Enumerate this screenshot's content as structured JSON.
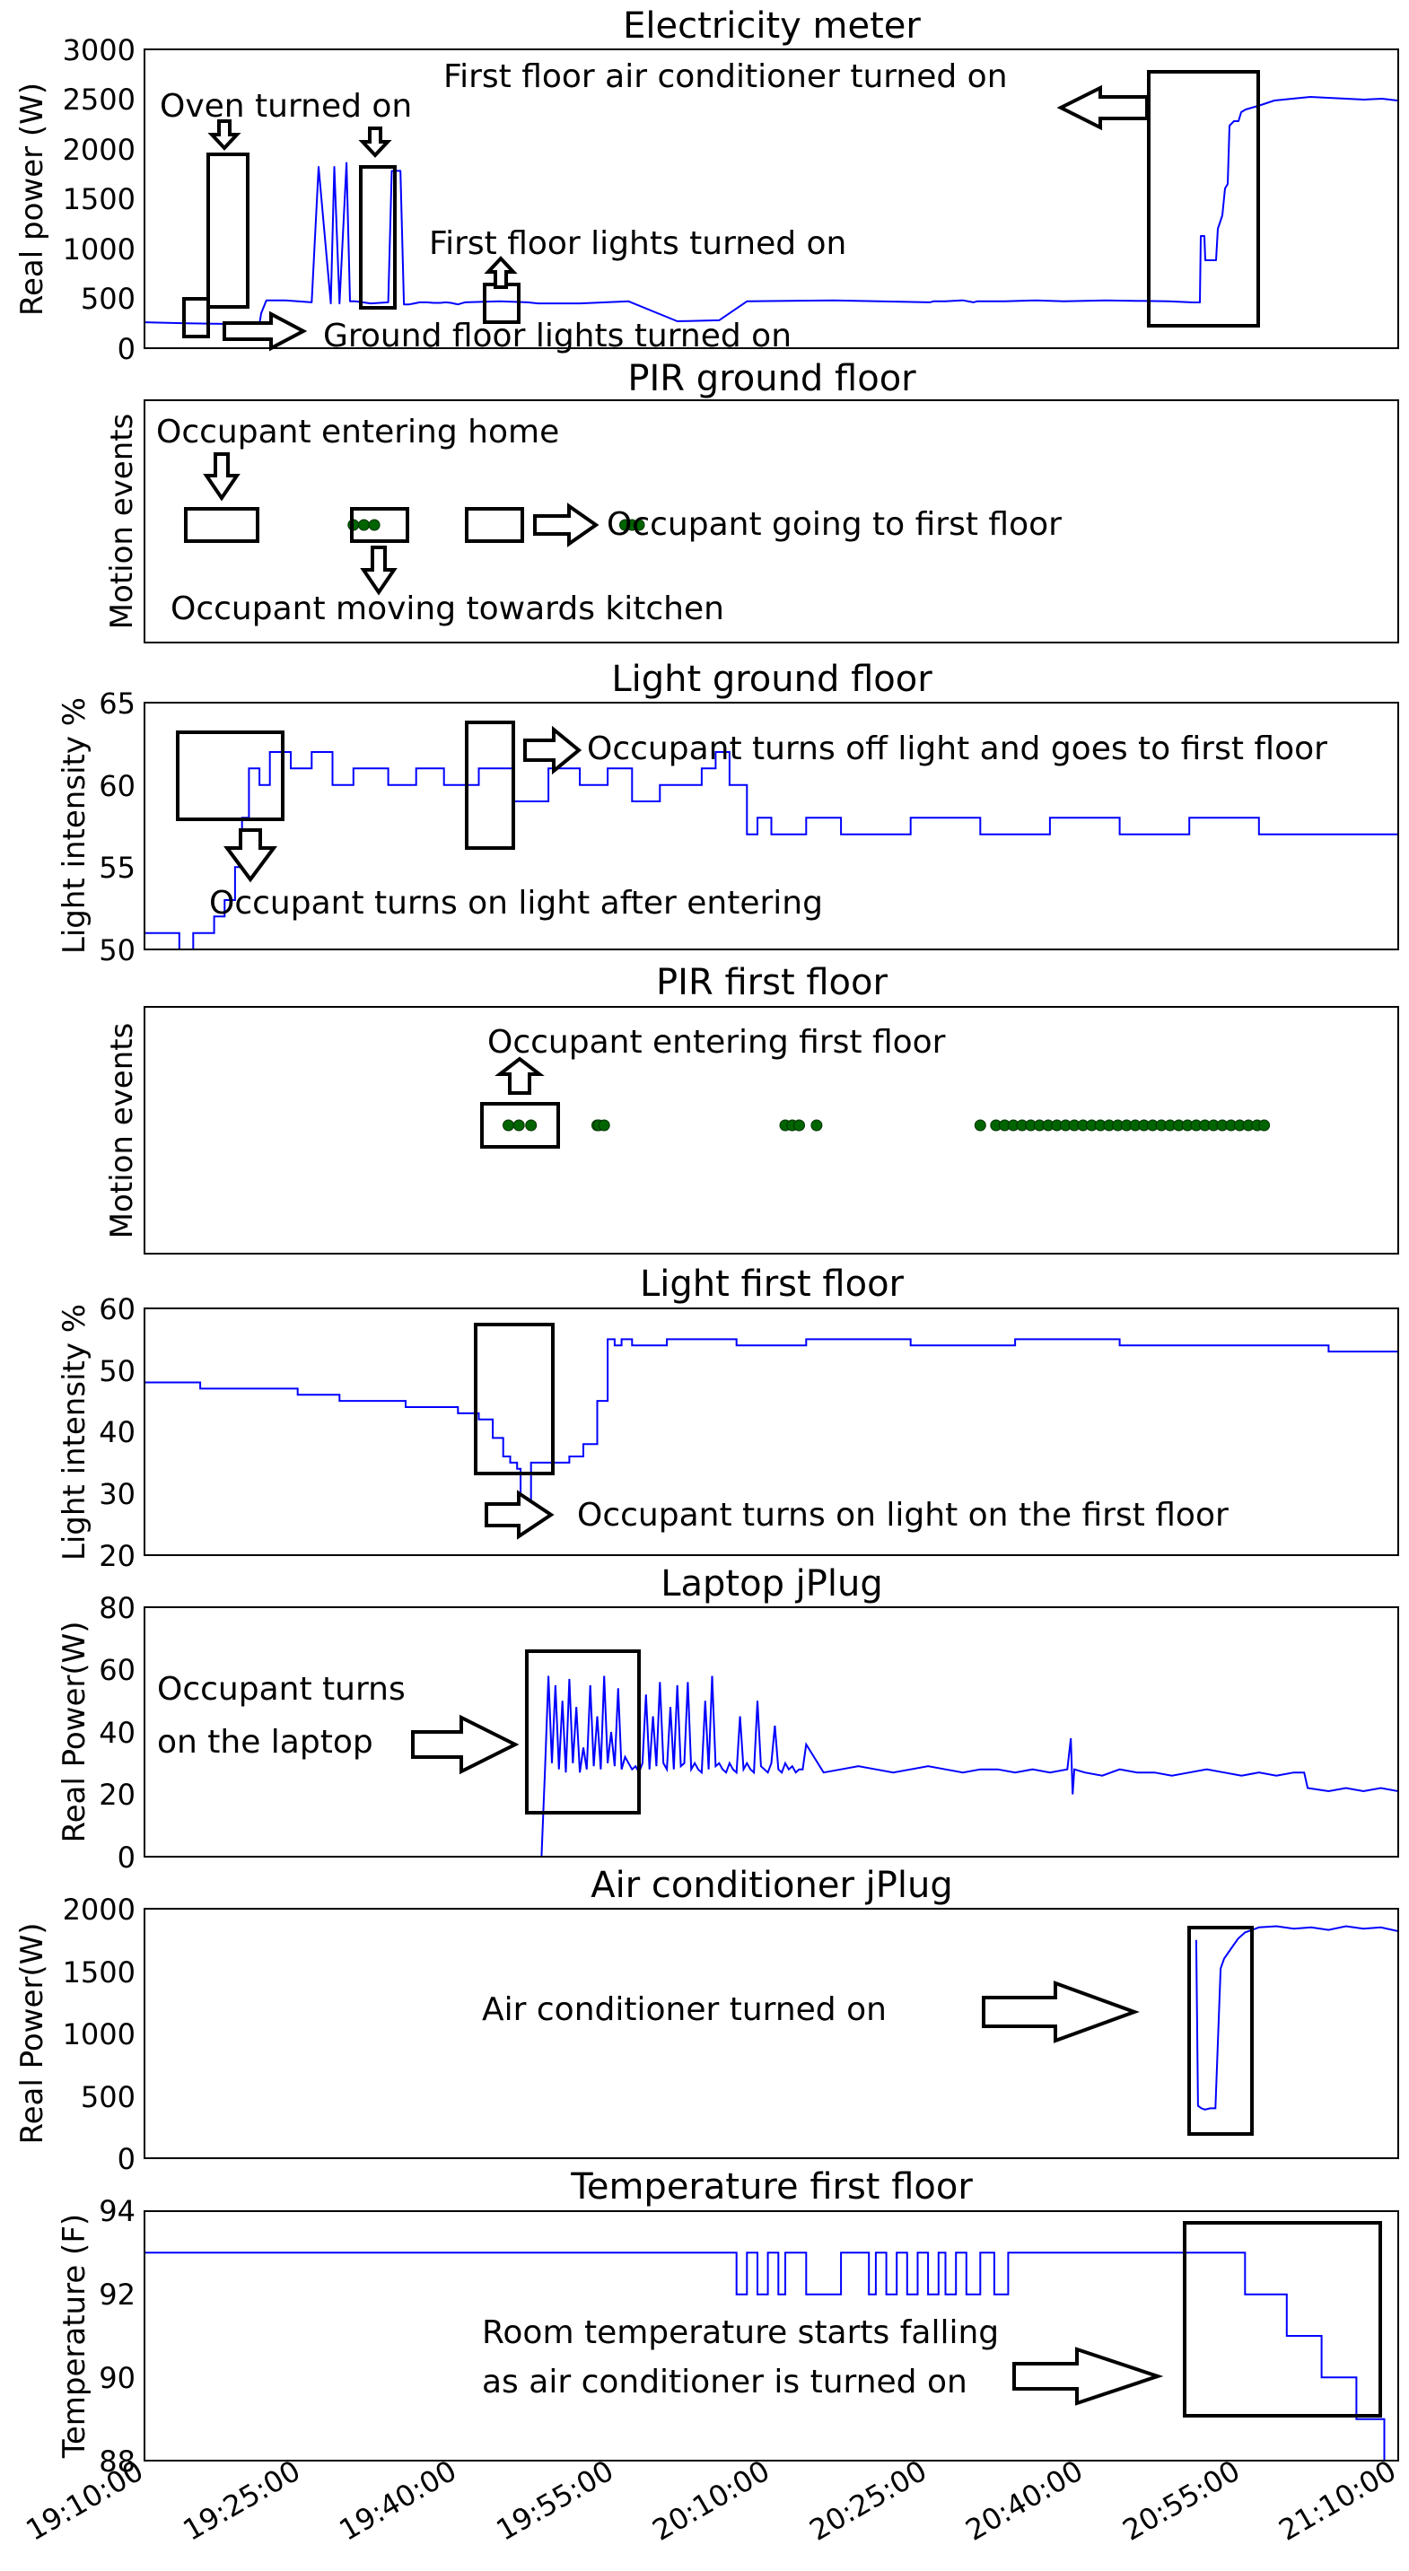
{
  "chart_data": [
    {
      "id": "electricity",
      "type": "line",
      "title": "Electricity meter",
      "ylabel": "Real power (W)",
      "ylim": [
        0,
        3000
      ],
      "yticks": [
        "0",
        "500",
        "1000",
        "1500",
        "2000",
        "2500",
        "3000"
      ],
      "color": "#0000ff",
      "series": [
        {
          "x": [
            0,
            120,
            330,
            335,
            350,
            405,
            480,
            500,
            535,
            545,
            560,
            580,
            590,
            605,
            650,
            700,
            710,
            735,
            745,
            760,
            775,
            790,
            810,
            830,
            850,
            865,
            880,
            900,
            920,
            1020,
            1100,
            1130,
            1250,
            1390,
            1530,
            1650,
            1730,
            1980,
            2255,
            2265,
            2275,
            2300,
            2345,
            2350,
            2380,
            2390,
            2420,
            2470,
            2560,
            2640,
            2760,
            2940,
            3110,
            3300,
            3500,
            3590,
            3600
          ],
          "y": [
            260,
            250,
            240,
            350,
            480,
            480,
            460,
            1820,
            450,
            1820,
            450,
            1860,
            470,
            470,
            450,
            460,
            1780,
            1780,
            440,
            440,
            450,
            460,
            460,
            455,
            455,
            460,
            455,
            440,
            460,
            470,
            460,
            450,
            450,
            470,
            270,
            280,
            470,
            480,
            460,
            470,
            470,
            470,
            480,
            480,
            460,
            470,
            470,
            470,
            480,
            470,
            480,
            470,
            490,
            500,
            480,
            480,
            470
          ]
        }
      ],
      "annotations": [
        "Oven turned on",
        "First floor air conditioner turned on",
        "First floor lights turned on",
        "Ground floor lights turned on"
      ]
    },
    {
      "id": "pir_ground",
      "type": "scatter",
      "title": "PIR ground floor",
      "ylabel": "Motion events",
      "color": "#006400",
      "series": [
        {
          "x": [
            600,
            630,
            660,
            1190,
            1210,
            1230,
            1380,
            1400,
            1420
          ]
        }
      ],
      "annotations": [
        "Occupant entering home",
        "Occupant going to first floor",
        "Occupant moving towards kitchen"
      ]
    },
    {
      "id": "light_ground",
      "type": "line",
      "title": "Light ground floor",
      "ylabel": "Light intensity %",
      "ylim": [
        50,
        65
      ],
      "yticks": [
        "50",
        "55",
        "60",
        "65"
      ],
      "color": "#0000ff",
      "series": [
        {
          "x": [
            0,
            60,
            100,
            140,
            170,
            200,
            230,
            260,
            280,
            300,
            330,
            360,
            420,
            480,
            540,
            600,
            660,
            700,
            780,
            860,
            960,
            1060,
            1160,
            1250,
            1330,
            1400,
            1480,
            1540,
            1600,
            1640,
            1680,
            1730,
            1760,
            1800,
            1840,
            1900,
            2000,
            2200,
            2400,
            2600,
            2800,
            3000,
            3200,
            3400,
            3600
          ],
          "y": [
            51,
            51,
            50,
            51,
            51,
            52,
            53,
            55,
            58,
            61,
            60,
            62,
            61,
            62,
            60,
            61,
            61,
            60,
            61,
            60,
            61,
            59,
            61,
            60,
            61,
            59,
            60,
            60,
            61,
            62,
            60,
            57,
            58,
            57,
            57,
            58,
            57,
            58,
            57,
            58,
            57,
            58,
            57,
            57,
            58
          ]
        }
      ],
      "annotations": [
        "Occupant turns off light and goes to first floor",
        "Occupant turns on light after entering"
      ]
    },
    {
      "id": "pir_first",
      "type": "scatter",
      "title": "PIR first floor",
      "ylabel": "Motion events",
      "color": "#006400",
      "series": [
        {
          "x": [
            1045,
            1075,
            1110,
            1300,
            1305,
            1320,
            1840,
            1860,
            1880,
            1930,
            2400,
            2445,
            2470,
            2495,
            2520,
            2545,
            2570,
            2595,
            2620,
            2645,
            2670,
            2695,
            2720,
            2745,
            2770,
            2795,
            2820,
            2845,
            2870,
            2895,
            2920,
            2945,
            2970,
            2995,
            3020,
            3045,
            3070,
            3095,
            3120,
            3145,
            3170,
            3195,
            3215
          ]
        }
      ],
      "annotations": [
        "Occupant entering first floor"
      ]
    },
    {
      "id": "light_first",
      "type": "line",
      "title": "Light first floor",
      "ylabel": "Light intensity %",
      "ylim": [
        20,
        60
      ],
      "yticks": [
        "20",
        "30",
        "40",
        "50",
        "60"
      ],
      "color": "#0000ff",
      "series": [
        {
          "x": [
            0,
            100,
            160,
            300,
            440,
            500,
            560,
            650,
            750,
            850,
            900,
            960,
            1000,
            1030,
            1050,
            1070,
            1080,
            1100,
            1110,
            1130,
            1160,
            1180,
            1200,
            1220,
            1260,
            1300,
            1330,
            1350,
            1370,
            1400,
            1500,
            1700,
            1900,
            2200,
            2500,
            2800,
            3000,
            3200,
            3400,
            3600
          ],
          "y": [
            48,
            48,
            47,
            47,
            46,
            46,
            45,
            45,
            44,
            44,
            43,
            42,
            39,
            36,
            35,
            34,
            26,
            26,
            35,
            35,
            35,
            35,
            35,
            36,
            38,
            45,
            55,
            54,
            55,
            54,
            55,
            54,
            55,
            54,
            55,
            54,
            54,
            54,
            53,
            53
          ]
        }
      ],
      "annotations": [
        "Occupant turns on light on the first floor"
      ]
    },
    {
      "id": "laptop",
      "type": "line",
      "title": "Laptop jPlug",
      "ylabel": "Real Power(W)",
      "ylim": [
        0,
        80
      ],
      "yticks": [
        "0",
        "20",
        "40",
        "60",
        "80"
      ],
      "color": "#0000ff",
      "series": [
        {
          "x": [
            1140,
            1150,
            1160,
            1170,
            1180,
            1190,
            1200,
            1210,
            1220,
            1230,
            1240,
            1250,
            1260,
            1270,
            1280,
            1290,
            1300,
            1310,
            1320,
            1330,
            1340,
            1350,
            1360,
            1370,
            1380,
            1390,
            1400,
            1410,
            1420,
            1430,
            1440,
            1450,
            1460,
            1470,
            1480,
            1490,
            1500,
            1510,
            1520,
            1530,
            1540,
            1550,
            1560,
            1570,
            1580,
            1590,
            1600,
            1610,
            1620,
            1630,
            1640,
            1650,
            1660,
            1670,
            1680,
            1690,
            1700,
            1710,
            1720,
            1730,
            1740,
            1750,
            1760,
            1770,
            1780,
            1790,
            1800,
            1810,
            1820,
            1830,
            1840,
            1850,
            1860,
            1870,
            1880,
            1890,
            1900,
            1950,
            2000,
            2050,
            2100,
            2150,
            2200,
            2250,
            2300,
            2350,
            2400,
            2450,
            2500,
            2550,
            2600,
            2650,
            2660,
            2665,
            2670,
            2700,
            2750,
            2800,
            2850,
            2900,
            2950,
            3000,
            3050,
            3100,
            3150,
            3200,
            3250,
            3300,
            3330,
            3340,
            3400,
            3450,
            3500,
            3550,
            3600
          ],
          "y": [
            0,
            28,
            58,
            30,
            55,
            28,
            50,
            27,
            57,
            30,
            48,
            27,
            35,
            28,
            55,
            29,
            45,
            28,
            58,
            30,
            40,
            29,
            54,
            28,
            32,
            30,
            28,
            29,
            27,
            30,
            52,
            28,
            45,
            29,
            56,
            30,
            28,
            48,
            28,
            55,
            29,
            30,
            56,
            28,
            30,
            28,
            27,
            50,
            28,
            58,
            29,
            30,
            28,
            27,
            30,
            28,
            27,
            45,
            28,
            30,
            28,
            27,
            50,
            29,
            28,
            27,
            30,
            42,
            28,
            27,
            30,
            28,
            29,
            27,
            28,
            28,
            36,
            27,
            28,
            29,
            28,
            27,
            28,
            29,
            28,
            27,
            28,
            28,
            27,
            28,
            27,
            28,
            38,
            20,
            28,
            27,
            26,
            28,
            27,
            27,
            26,
            27,
            28,
            27,
            26,
            27,
            26,
            27,
            27,
            22,
            21,
            22,
            21,
            22,
            21
          ]
        }
      ],
      "annotations": [
        "Occupant turns",
        "on the laptop"
      ]
    },
    {
      "id": "ac",
      "type": "line",
      "title": "Air conditioner jPlug",
      "ylabel": "Real Power(W)",
      "ylim": [
        0,
        2000
      ],
      "yticks": [
        "0",
        "500",
        "1000",
        "1500",
        "2000"
      ],
      "color": "#0000ff",
      "series": [
        {
          "x": [
            3020,
            3025,
            3035,
            3045,
            3060,
            3075,
            3090,
            3100,
            3120,
            3140,
            3160,
            3200,
            3250,
            3300,
            3350,
            3400,
            3450,
            3500,
            3550,
            3600
          ],
          "y": [
            1750,
            420,
            400,
            390,
            400,
            400,
            1520,
            1600,
            1680,
            1760,
            1810,
            1850,
            1860,
            1840,
            1850,
            1830,
            1860,
            1840,
            1850,
            1820
          ]
        }
      ],
      "annotations": [
        "Air conditioner turned on"
      ]
    },
    {
      "id": "temperature",
      "type": "line",
      "title": "Temperature first floor",
      "ylabel": "Temperature (F)",
      "ylim": [
        88,
        94
      ],
      "yticks": [
        "88",
        "90",
        "92",
        "94"
      ],
      "xticks": [
        "19:10:00",
        "19:25:00",
        "19:40:00",
        "19:55:00",
        "20:10:00",
        "20:25:00",
        "20:40:00",
        "20:55:00",
        "21:10:00"
      ],
      "color": "#0000ff",
      "series": [
        {
          "x": [
            0,
            200,
            400,
            600,
            800,
            1000,
            1200,
            1400,
            1600,
            1700,
            1730,
            1760,
            1790,
            1820,
            1840,
            1870,
            1900,
            1940,
            1960,
            2000,
            2080,
            2100,
            2130,
            2160,
            2190,
            2220,
            2250,
            2280,
            2300,
            2330,
            2360,
            2400,
            2440,
            2460,
            2480,
            2500,
            2600,
            2700,
            2800,
            2900,
            3000,
            3100,
            3140,
            3160,
            3200,
            3240,
            3280,
            3330,
            3380,
            3420,
            3480,
            3530,
            3560,
            3600
          ],
          "y": [
            93,
            93,
            93,
            93,
            93,
            93,
            93,
            93,
            93,
            92,
            93,
            92,
            93,
            92,
            93,
            93,
            92,
            92,
            92,
            93,
            92,
            93,
            92,
            93,
            92,
            93,
            92,
            93,
            92,
            93,
            92,
            93,
            92,
            92,
            93,
            93,
            93,
            93,
            93,
            93,
            93,
            93,
            93,
            92,
            92,
            92,
            91,
            91,
            90,
            90,
            89,
            89,
            88,
            88
          ]
        }
      ],
      "annotations": [
        "Room temperature starts falling",
        "as air conditioner is turned on"
      ]
    }
  ]
}
